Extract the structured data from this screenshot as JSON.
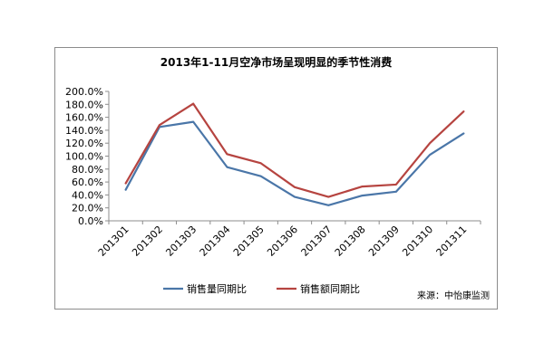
{
  "chart_data": {
    "type": "line",
    "title": "2013年1-11月空净市场呈现明显的季节性消费",
    "categories": [
      "201301",
      "201302",
      "201303",
      "201304",
      "201305",
      "201306",
      "201307",
      "201308",
      "201309",
      "201310",
      "201311"
    ],
    "series": [
      {
        "name": "销售量同期比",
        "color": "#4a76a8",
        "values": [
          48,
          145,
          153,
          83,
          69,
          37,
          24,
          39,
          45,
          102,
          135
        ]
      },
      {
        "name": "销售额同期比",
        "color": "#b64440",
        "values": [
          58,
          148,
          181,
          103,
          89,
          52,
          37,
          53,
          56,
          120,
          169
        ]
      }
    ],
    "ylim": [
      0,
      200
    ],
    "yticks": [
      "200.0%",
      "180.0%",
      "160.0%",
      "140.0%",
      "120.0%",
      "100.0%",
      "80.0%",
      "60.0%",
      "40.0%",
      "20.0%",
      "0.0%"
    ],
    "grid": false,
    "legend_position": "bottom",
    "source": "来源：中怡康监测"
  }
}
